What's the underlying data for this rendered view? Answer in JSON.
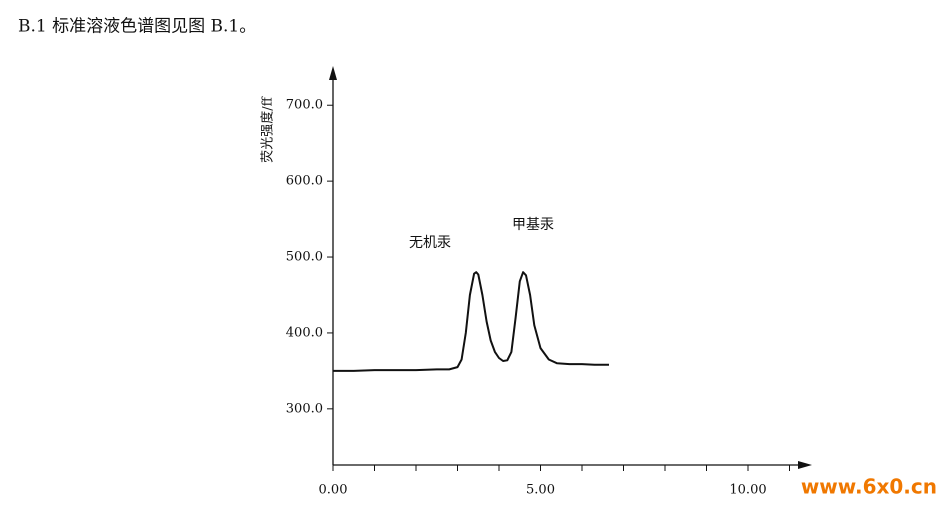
{
  "heading": "B.1  标准溶液色谱图见图 B.1。",
  "chart_data": {
    "type": "line",
    "ylabel": "荧光强度/ff",
    "x": [
      0,
      0.5,
      1,
      1.5,
      2,
      2.5,
      2.8,
      3.0,
      3.1,
      3.2,
      3.3,
      3.4,
      3.45,
      3.5,
      3.6,
      3.7,
      3.8,
      3.9,
      4.0,
      4.1,
      4.2,
      4.3,
      4.4,
      4.5,
      4.58,
      4.65,
      4.75,
      4.85,
      5.0,
      5.2,
      5.4,
      5.7,
      6.0,
      6.3,
      6.65
    ],
    "series": [
      {
        "color": "#111111",
        "values": [
          350,
          350,
          351,
          351,
          351,
          352,
          352,
          355,
          365,
          400,
          450,
          478,
          480,
          477,
          450,
          415,
          390,
          375,
          367,
          363,
          364,
          375,
          420,
          468,
          480,
          476,
          450,
          410,
          380,
          365,
          360,
          359,
          359,
          358,
          358
        ]
      }
    ],
    "annotations": [
      "无机汞",
      "甲基汞"
    ],
    "xlim": [
      0,
      11.5
    ],
    "ylim": [
      226,
      746
    ],
    "xticks": [
      {
        "value": 0,
        "label": "0.00"
      },
      {
        "value": 5,
        "label": "5.00"
      },
      {
        "value": 10,
        "label": "10.00"
      }
    ],
    "xminorticks": [
      1,
      2,
      3,
      4,
      6,
      7,
      8,
      9,
      11
    ],
    "yticks": [
      {
        "value": 300,
        "label": "300.0"
      },
      {
        "value": 400,
        "label": "400.0"
      },
      {
        "value": 500,
        "label": "500.0"
      },
      {
        "value": 600,
        "label": "600.0"
      },
      {
        "value": 700,
        "label": "700.0"
      }
    ]
  },
  "watermark": "www.6x0.cn"
}
